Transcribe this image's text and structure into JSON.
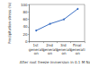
{
  "chart_data": {
    "type": "line",
    "ylabel": "Precipitation stress (%)",
    "xlabel": "After root freeze immersion in 0.1 M NaCl",
    "categories": [
      "1st generation",
      "2nd generation",
      "3rd generation",
      "Final generation"
    ],
    "values": [
      30,
      48,
      60,
      88
    ],
    "color": "#3a6fc4",
    "marker": "circle",
    "ylim": [
      0,
      100
    ],
    "yticks": [
      0,
      20,
      40,
      60,
      80,
      100
    ],
    "grid": false
  }
}
